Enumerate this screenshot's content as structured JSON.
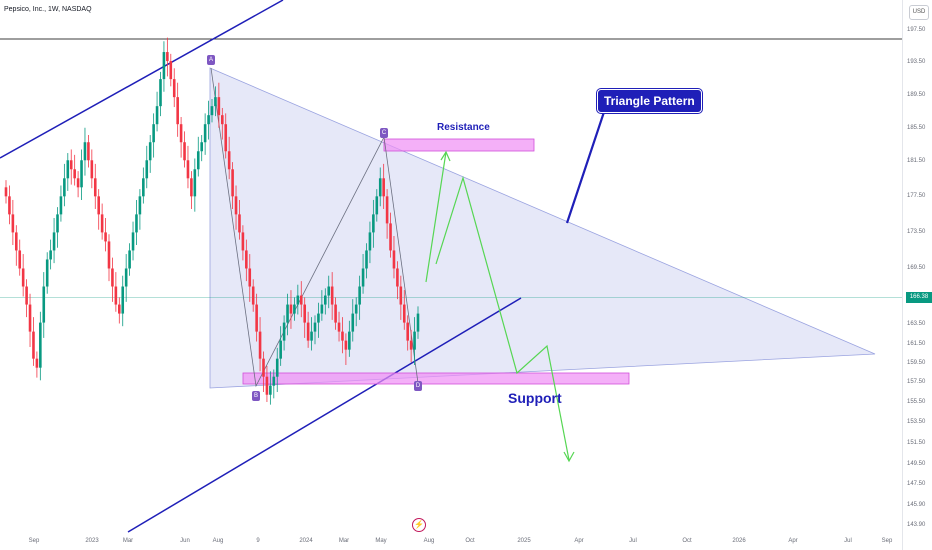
{
  "header": {
    "title": "Pepsico, Inc., 1W, NASDAQ"
  },
  "currency": "USD",
  "flash_symbol": "⚡",
  "price_scale": {
    "ticks": [
      "197.50",
      "193.50",
      "189.50",
      "185.50",
      "181.50",
      "177.50",
      "173.50",
      "169.50",
      "166.38",
      "163.50",
      "161.50",
      "159.50",
      "157.50",
      "155.50",
      "153.50",
      "151.50",
      "149.50",
      "147.50",
      "145.90",
      "143.90"
    ],
    "ylim": [
      143,
      199
    ],
    "current_price": "166.38",
    "current_value": 166.38
  },
  "time_axis": {
    "ticks": [
      "Sep",
      "2023",
      "Mar",
      "Jun",
      "Aug",
      "9",
      "2024",
      "Mar",
      "May",
      "Aug",
      "Oct",
      "2025",
      "Apr",
      "Jul",
      "Oct",
      "2026",
      "Apr",
      "Jul",
      "Sep"
    ]
  },
  "annotations": {
    "pattern_label": "Triangle Pattern",
    "resistance_label": "Resistance",
    "support_label": "Support",
    "point_a": "A",
    "point_b": "B",
    "point_c": "C",
    "point_d": "D"
  },
  "colors": {
    "up": "#089981",
    "down": "#f23645",
    "channel": "#1f1fb8",
    "triangle_fill": "#d8dcf5",
    "zone": "#ef8ef5",
    "projection": "#56d653",
    "resistance_line": "#3c3c3c"
  },
  "chart_data": {
    "type": "candlestick",
    "title": "Pepsico, Inc., 1W, NASDAQ",
    "ylabel": "USD",
    "ylim": [
      143,
      199
    ],
    "grid": false,
    "current_price": 166.38,
    "series": [
      {
        "name": "PEP",
        "close": [
          180,
          178,
          176,
          174,
          172,
          170,
          168,
          165,
          162,
          161,
          166,
          170,
          173,
          174,
          176,
          178,
          180,
          182,
          184,
          183,
          182,
          181,
          184,
          186,
          184,
          182,
          180,
          178,
          176,
          175,
          172,
          170,
          168,
          167,
          170,
          172,
          174,
          176,
          178,
          180,
          182,
          184,
          186,
          188,
          190,
          193,
          196,
          195,
          193,
          191,
          188,
          186,
          184,
          182,
          180,
          183,
          185,
          186,
          188,
          189,
          190,
          191,
          189,
          188,
          185,
          183,
          180,
          178,
          176,
          174,
          172,
          170,
          168,
          165,
          162,
          160,
          158,
          159,
          160,
          162,
          164,
          166,
          168,
          167,
          168,
          169,
          168,
          166,
          164,
          165,
          166,
          167,
          168,
          169,
          170,
          168,
          166,
          165,
          164,
          163,
          165,
          167,
          168,
          170,
          172,
          174,
          176,
          178,
          180,
          182,
          180,
          177,
          174,
          172,
          170,
          168,
          166,
          164,
          163,
          165,
          167
        ]
      }
    ],
    "zones": [
      {
        "name": "Resistance",
        "value_from": 183.4,
        "value_to": 184.6
      },
      {
        "name": "Support",
        "value_from": 157.3,
        "value_to": 158.4
      }
    ]
  }
}
